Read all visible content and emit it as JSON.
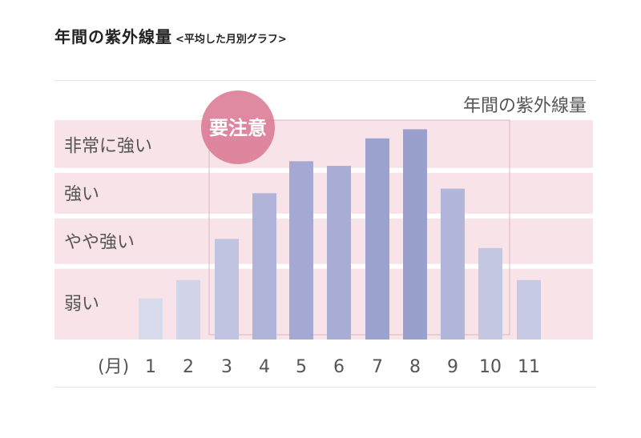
{
  "header": {
    "title": "年間の紫外線量",
    "subtitle": "<平均した月別グラフ>"
  },
  "chart_data": {
    "type": "bar",
    "caption": "年間の紫外線量",
    "x_unit_label": "(月)",
    "categories": [
      "1",
      "2",
      "3",
      "4",
      "5",
      "6",
      "7",
      "8",
      "9",
      "10",
      "11"
    ],
    "values": [
      0.9,
      1.3,
      2.2,
      3.2,
      3.9,
      3.8,
      4.4,
      4.6,
      3.3,
      2.0,
      1.3
    ],
    "ylim": [
      0,
      4.8
    ],
    "levels": [
      {
        "label": "弱い",
        "from": 0,
        "to": 1.6
      },
      {
        "label": "やや強い",
        "from": 1.6,
        "to": 2.7
      },
      {
        "label": "強い",
        "from": 2.7,
        "to": 3.7
      },
      {
        "label": "非常に強い",
        "from": 3.7,
        "to": 4.8
      }
    ],
    "badge": {
      "label": "要注意",
      "months": [
        "3",
        "4",
        "5",
        "6",
        "7",
        "8",
        "9",
        "10"
      ]
    },
    "colors": {
      "band": "#f7e3e8",
      "badge": "#d97590",
      "bars": [
        "#d8dbec",
        "#d2d5ea",
        "#c0c4e1",
        "#b0b4d9",
        "#a4a9d3",
        "#a8add5",
        "#9ca2cf",
        "#9aa0ce",
        "#b2b6da",
        "#c4c7e2",
        "#c6c9e3"
      ]
    },
    "grid": false
  }
}
